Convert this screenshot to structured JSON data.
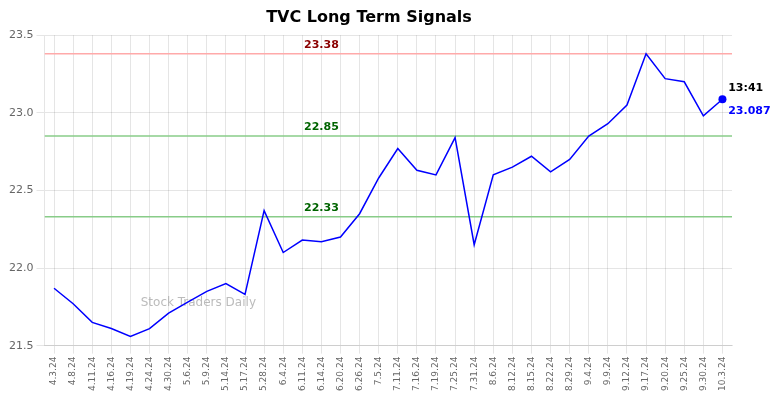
{
  "chart_data": {
    "type": "line",
    "title": "TVC Long Term Signals",
    "categories": [
      "4.3.24",
      "4.8.24",
      "4.11.24",
      "4.16.24",
      "4.19.24",
      "4.24.24",
      "4.30.24",
      "5.6.24",
      "5.9.24",
      "5.14.24",
      "5.17.24",
      "5.28.24",
      "6.4.24",
      "6.11.24",
      "6.14.24",
      "6.20.24",
      "6.26.24",
      "7.5.24",
      "7.11.24",
      "7.16.24",
      "7.19.24",
      "7.25.24",
      "7.31.24",
      "8.6.24",
      "8.12.24",
      "8.15.24",
      "8.22.24",
      "8.29.24",
      "9.4.24",
      "9.9.24",
      "9.12.24",
      "9.17.24",
      "9.20.24",
      "9.25.24",
      "9.30.24",
      "10.3.24"
    ],
    "values": [
      21.87,
      21.77,
      21.65,
      21.61,
      21.56,
      21.61,
      21.71,
      21.78,
      21.85,
      21.9,
      21.83,
      22.37,
      22.1,
      22.18,
      22.17,
      22.2,
      22.35,
      22.58,
      22.77,
      22.63,
      22.6,
      22.84,
      22.15,
      22.6,
      22.65,
      22.72,
      22.62,
      22.7,
      22.85,
      22.93,
      23.05,
      23.38,
      23.22,
      23.2,
      22.98,
      23.087
    ],
    "color": "blue",
    "ylim": [
      21.5,
      23.5
    ],
    "yticks": [
      21.5,
      {
        "value": 22,
        "label": "22.0"
      },
      22.5,
      {
        "value": 23,
        "label": "23.0"
      },
      23.5
    ],
    "grid": true,
    "hlines": [
      {
        "y": 23.38,
        "color": "#ffaaaa",
        "label": "23.38",
        "label_color": "darkred"
      },
      {
        "y": 22.85,
        "color": "#88cc88",
        "label": "22.85",
        "label_color": "darkgreen"
      },
      {
        "y": 22.33,
        "color": "#88cc88",
        "label": "22.33",
        "label_color": "darkgreen"
      }
    ],
    "annotations": [
      {
        "text": "13:41",
        "x": "10.3.24",
        "y": 23.087,
        "color": "black"
      },
      {
        "text": "23.087",
        "x": "10.3.24",
        "y": 23.087,
        "color": "blue",
        "marker": "circle"
      }
    ],
    "watermark": "Stock Traders Daily"
  }
}
